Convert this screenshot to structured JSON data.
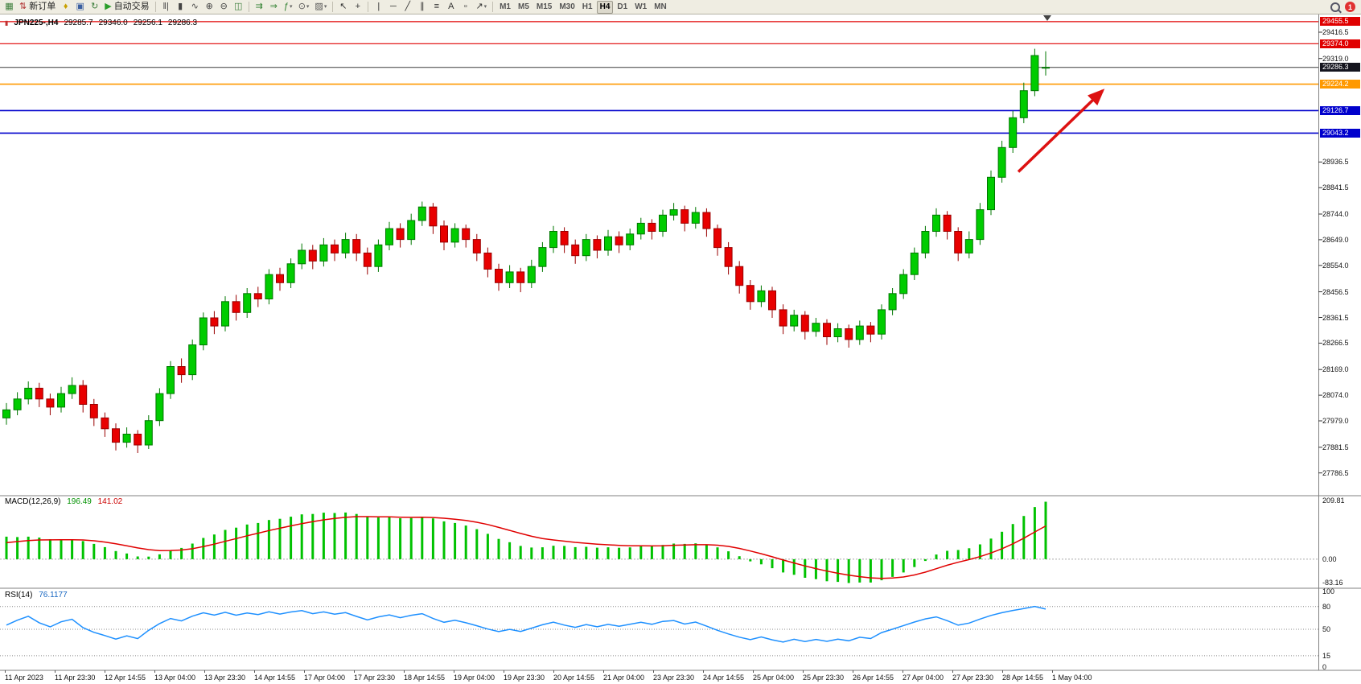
{
  "icons": {
    "chart_header": "▮",
    "dropdown_caret": "▾"
  },
  "toolbar": {
    "items": [
      {
        "name": "new-chart-button",
        "glyph": "▦",
        "color": "#3a7d3a"
      },
      {
        "name": "new-order-button",
        "glyph": "⇅",
        "color": "#b03030",
        "label": "新订单"
      },
      {
        "name": "symbols-button",
        "glyph": "♦",
        "color": "#c8a000"
      },
      {
        "name": "profile-button",
        "glyph": "▣",
        "color": "#3a5fa0"
      },
      {
        "name": "refresh-button",
        "glyph": "↻",
        "color": "#3a7d3a"
      },
      {
        "name": "autotrading-button",
        "glyph": "▶",
        "color": "#2a9d2a",
        "label": "自动交易"
      },
      {
        "sep": true
      },
      {
        "name": "bar-chart-type-button",
        "glyph": "‖|",
        "color": "#444444"
      },
      {
        "name": "candlestick-type-button",
        "glyph": "▮",
        "color": "#444444"
      },
      {
        "name": "line-chart-type-button",
        "glyph": "∿",
        "color": "#444444"
      },
      {
        "name": "zoom-in-button",
        "glyph": "⊕",
        "color": "#444444"
      },
      {
        "name": "zoom-out-button",
        "glyph": "⊖",
        "color": "#444444"
      },
      {
        "name": "tile-windows-button",
        "glyph": "◫",
        "color": "#3a7d3a"
      },
      {
        "sep": true
      },
      {
        "name": "auto-scroll-button",
        "glyph": "⇉",
        "color": "#2a7d2a"
      },
      {
        "name": "chart-shift-button",
        "glyph": "⇒",
        "color": "#2a7d2a"
      },
      {
        "name": "indicators-button",
        "glyph": "ƒ",
        "color": "#2a7d2a",
        "dropdown": true
      },
      {
        "name": "periods-button",
        "glyph": "⊙",
        "color": "#555555",
        "dropdown": true
      },
      {
        "name": "templates-button",
        "glyph": "▨",
        "color": "#555555",
        "dropdown": true
      },
      {
        "sep": true
      },
      {
        "name": "cursor-button",
        "glyph": "↖",
        "color": "#333333"
      },
      {
        "name": "crosshair-button",
        "glyph": "+",
        "color": "#333333"
      },
      {
        "sep": true
      },
      {
        "name": "vertical-line-button",
        "glyph": "|",
        "color": "#333333"
      },
      {
        "name": "horizontal-line-button",
        "glyph": "─",
        "color": "#333333"
      },
      {
        "name": "trendline-button",
        "glyph": "╱",
        "color": "#333333"
      },
      {
        "name": "channel-button",
        "glyph": "∥",
        "color": "#333333"
      },
      {
        "name": "fibonacci-button",
        "glyph": "≡",
        "color": "#333333"
      },
      {
        "name": "text-button",
        "glyph": "A",
        "color": "#333333"
      },
      {
        "name": "label-button",
        "glyph": "▫",
        "color": "#333333"
      },
      {
        "name": "arrows-tool-button",
        "glyph": "↗",
        "color": "#333333",
        "dropdown": true
      },
      {
        "sep": true
      }
    ],
    "timeframes": [
      "M1",
      "M5",
      "M15",
      "M30",
      "H1",
      "H4",
      "D1",
      "W1",
      "MN"
    ],
    "active_timeframe": "H4",
    "badge": "1"
  },
  "chart": {
    "symbol_header": "JPN225-,H4",
    "ohlc": {
      "open": "29285.7",
      "high": "29346.0",
      "low": "29256.1",
      "close": "29286.3"
    },
    "price_axis": {
      "range_max": 29470,
      "range_min": 27750,
      "ticks": [
        29416.5,
        29319.0,
        28936.5,
        28841.5,
        28744.0,
        28649.0,
        28554.0,
        28456.5,
        28361.5,
        28266.5,
        28169.0,
        28074.0,
        27979.0,
        27881.5,
        27786.5
      ]
    },
    "levels": [
      {
        "name": "resistance-line-1",
        "price": 29455.5,
        "label": "29455.5",
        "color": "#e00000",
        "width": 1.2
      },
      {
        "name": "resistance-line-2",
        "price": 29374.0,
        "label": "29374.0",
        "color": "#e00000",
        "width": 1.2
      },
      {
        "name": "bid-price-line",
        "price": 29286.3,
        "label": "29286.3",
        "color": "#3c3c3c",
        "tag": "#14141e",
        "width": 1
      },
      {
        "name": "pivot-line",
        "price": 29224.2,
        "label": "29224.2",
        "color": "#ff9900",
        "width": 1.6
      },
      {
        "name": "support-line-1",
        "price": 29126.7,
        "label": "29126.7",
        "color": "#0000cc",
        "width": 1.6
      },
      {
        "name": "support-line-2",
        "price": 29043.2,
        "label": "29043.2",
        "color": "#0000cc",
        "width": 1.6
      }
    ]
  },
  "chart_data": {
    "type": "candlestick",
    "symbol": "JPN225-",
    "timeframe": "H4",
    "title": "JPN225-,H4",
    "x_labels": [
      "11 Apr 2023",
      "11 Apr 23:30",
      "12 Apr 14:55",
      "13 Apr 04:00",
      "13 Apr 23:30",
      "14 Apr 14:55",
      "17 Apr 04:00",
      "17 Apr 23:30",
      "18 Apr 14:55",
      "19 Apr 04:00",
      "19 Apr 23:30",
      "20 Apr 14:55",
      "21 Apr 04:00",
      "23 Apr 23:30",
      "24 Apr 14:55",
      "25 Apr 04:00",
      "25 Apr 23:30",
      "26 Apr 14:55",
      "27 Apr 04:00",
      "27 Apr 23:30",
      "28 Apr 14:55",
      "1 May 04:00"
    ],
    "colors": {
      "up": "#00cc00",
      "up_border": "#007700",
      "down": "#e80000",
      "down_border": "#990000"
    },
    "candles": [
      [
        27990,
        28045,
        27965,
        28020
      ],
      [
        28020,
        28085,
        28000,
        28060
      ],
      [
        28060,
        28125,
        28040,
        28100
      ],
      [
        28100,
        28120,
        28030,
        28060
      ],
      [
        28060,
        28080,
        28000,
        28030
      ],
      [
        28030,
        28105,
        28010,
        28080
      ],
      [
        28080,
        28140,
        28060,
        28110
      ],
      [
        28110,
        28130,
        28010,
        28040
      ],
      [
        28040,
        28060,
        27960,
        27990
      ],
      [
        27990,
        28010,
        27920,
        27950
      ],
      [
        27950,
        27970,
        27870,
        27900
      ],
      [
        27900,
        27955,
        27880,
        27930
      ],
      [
        27930,
        27945,
        27860,
        27890
      ],
      [
        27890,
        28000,
        27875,
        27980
      ],
      [
        27980,
        28100,
        27960,
        28080
      ],
      [
        28080,
        28200,
        28060,
        28180
      ],
      [
        28180,
        28210,
        28120,
        28150
      ],
      [
        28150,
        28280,
        28130,
        28260
      ],
      [
        28260,
        28380,
        28240,
        28360
      ],
      [
        28360,
        28385,
        28300,
        28330
      ],
      [
        28330,
        28440,
        28310,
        28420
      ],
      [
        28420,
        28445,
        28350,
        28380
      ],
      [
        28380,
        28470,
        28360,
        28450
      ],
      [
        28450,
        28475,
        28400,
        28430
      ],
      [
        28430,
        28540,
        28410,
        28520
      ],
      [
        28520,
        28545,
        28460,
        28490
      ],
      [
        28490,
        28580,
        28470,
        28560
      ],
      [
        28560,
        28635,
        28540,
        28610
      ],
      [
        28610,
        28630,
        28540,
        28570
      ],
      [
        28570,
        28655,
        28550,
        28630
      ],
      [
        28630,
        28650,
        28570,
        28600
      ],
      [
        28600,
        28675,
        28580,
        28650
      ],
      [
        28650,
        28670,
        28570,
        28600
      ],
      [
        28600,
        28620,
        28520,
        28550
      ],
      [
        28550,
        28650,
        28530,
        28630
      ],
      [
        28630,
        28715,
        28610,
        28690
      ],
      [
        28690,
        28710,
        28620,
        28650
      ],
      [
        28650,
        28745,
        28630,
        28720
      ],
      [
        28720,
        28790,
        28700,
        28770
      ],
      [
        28770,
        28785,
        28670,
        28700
      ],
      [
        28700,
        28720,
        28610,
        28640
      ],
      [
        28640,
        28710,
        28620,
        28690
      ],
      [
        28690,
        28705,
        28620,
        28650
      ],
      [
        28650,
        28670,
        28570,
        28600
      ],
      [
        28600,
        28620,
        28510,
        28540
      ],
      [
        28540,
        28560,
        28460,
        28490
      ],
      [
        28490,
        28555,
        28470,
        28530
      ],
      [
        28530,
        28545,
        28455,
        28490
      ],
      [
        28490,
        28575,
        28470,
        28550
      ],
      [
        28550,
        28640,
        28530,
        28620
      ],
      [
        28620,
        28700,
        28600,
        28680
      ],
      [
        28680,
        28695,
        28600,
        28630
      ],
      [
        28630,
        28650,
        28560,
        28590
      ],
      [
        28590,
        28670,
        28570,
        28650
      ],
      [
        28650,
        28665,
        28580,
        28610
      ],
      [
        28610,
        28685,
        28590,
        28660
      ],
      [
        28660,
        28680,
        28600,
        28630
      ],
      [
        28630,
        28690,
        28610,
        28670
      ],
      [
        28670,
        28730,
        28650,
        28710
      ],
      [
        28710,
        28725,
        28650,
        28680
      ],
      [
        28680,
        28760,
        28660,
        28740
      ],
      [
        28740,
        28785,
        28720,
        28760
      ],
      [
        28760,
        28775,
        28680,
        28710
      ],
      [
        28710,
        28770,
        28690,
        28750
      ],
      [
        28750,
        28765,
        28660,
        28690
      ],
      [
        28690,
        28705,
        28590,
        28620
      ],
      [
        28620,
        28640,
        28520,
        28550
      ],
      [
        28550,
        28570,
        28450,
        28480
      ],
      [
        28480,
        28500,
        28390,
        28420
      ],
      [
        28420,
        28480,
        28400,
        28460
      ],
      [
        28460,
        28475,
        28360,
        28390
      ],
      [
        28390,
        28410,
        28300,
        28330
      ],
      [
        28330,
        28390,
        28310,
        28370
      ],
      [
        28370,
        28385,
        28280,
        28310
      ],
      [
        28310,
        28360,
        28290,
        28340
      ],
      [
        28340,
        28355,
        28260,
        28290
      ],
      [
        28290,
        28340,
        28270,
        28320
      ],
      [
        28320,
        28335,
        28250,
        28280
      ],
      [
        28280,
        28350,
        28260,
        28330
      ],
      [
        28330,
        28345,
        28270,
        28300
      ],
      [
        28300,
        28410,
        28280,
        28390
      ],
      [
        28390,
        28470,
        28370,
        28450
      ],
      [
        28450,
        28540,
        28430,
        28520
      ],
      [
        28520,
        28620,
        28500,
        28600
      ],
      [
        28600,
        28700,
        28580,
        28680
      ],
      [
        28680,
        28765,
        28660,
        28740
      ],
      [
        28740,
        28755,
        28650,
        28680
      ],
      [
        28680,
        28695,
        28570,
        28600
      ],
      [
        28600,
        28680,
        28580,
        28650
      ],
      [
        28650,
        28785,
        28630,
        28760
      ],
      [
        28760,
        28905,
        28740,
        28880
      ],
      [
        28880,
        29015,
        28860,
        28990
      ],
      [
        28990,
        29125,
        28970,
        29100
      ],
      [
        29100,
        29230,
        29080,
        29200
      ],
      [
        29200,
        29355,
        29180,
        29330
      ],
      [
        29285.7,
        29346.0,
        29256.1,
        29286.3
      ]
    ],
    "indicators": [
      {
        "type": "macd",
        "label": "MACD(12,26,9)",
        "params": [
          12,
          26,
          9
        ],
        "values": [
          "196.49",
          "141.02"
        ],
        "axis_ticks": [
          "209.81",
          "0.00",
          "-83.16"
        ],
        "axis_max": 215,
        "axis_min": -95,
        "histogram_color": "#00c200",
        "signal_color": "#e00000"
      },
      {
        "type": "rsi",
        "label": "RSI(14)",
        "period": 14,
        "value": "76.1177",
        "axis_ticks": [
          100,
          80,
          50,
          15,
          0
        ],
        "levels": [
          80,
          50,
          15
        ],
        "line_color": "#1e90ff"
      }
    ],
    "annotations": [
      {
        "type": "arrow",
        "name": "trend-arrow",
        "color": "#dd1111",
        "x1_candle": 92.5,
        "price1": 28900,
        "x2_candle": 100.2,
        "price2": 29200
      }
    ]
  }
}
